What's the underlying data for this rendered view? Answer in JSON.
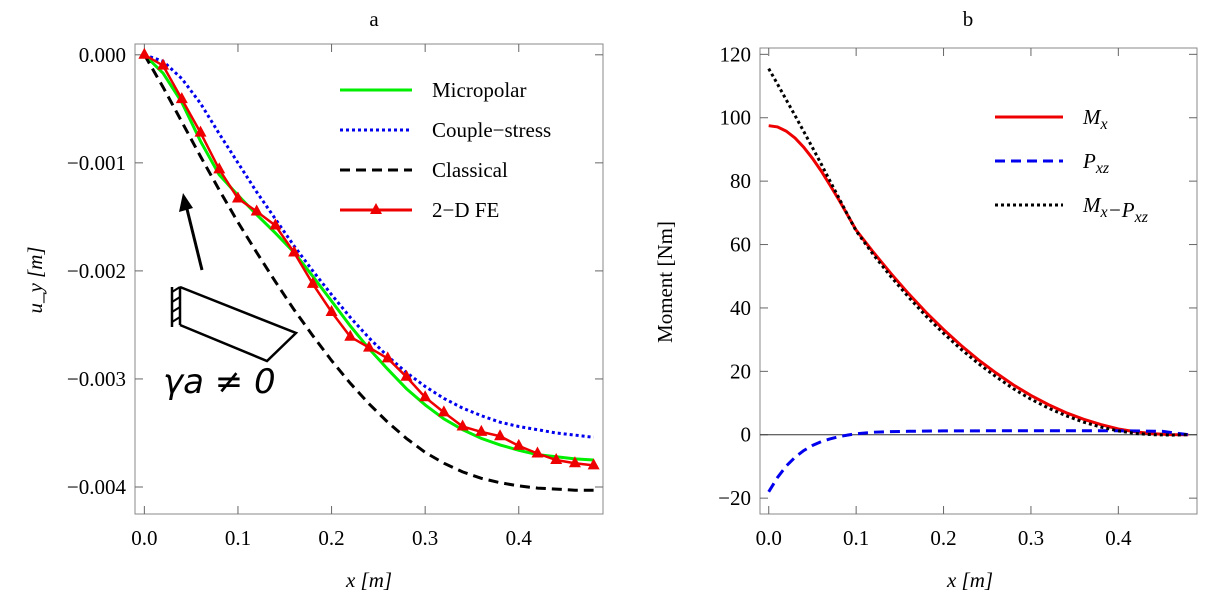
{
  "chart_data": [
    {
      "type": "line",
      "panel_label": "a",
      "xlabel": "x [m]",
      "ylabel": "u_y [m]",
      "xlim": [
        -0.01,
        0.49
      ],
      "ylim": [
        -0.00425,
        0.0001
      ],
      "x_ticks": [
        "0.0",
        "0.1",
        "0.2",
        "0.3",
        "0.4"
      ],
      "y_ticks": [
        "0.000",
        "−0.001",
        "−0.002",
        "−0.003",
        "−0.004"
      ],
      "legend_position": "top-right",
      "series": [
        {
          "name": "Micropolar",
          "color": "#00ee00",
          "style": "solid",
          "x": [
            0,
            0.02,
            0.04,
            0.06,
            0.08,
            0.1,
            0.12,
            0.14,
            0.16,
            0.18,
            0.2,
            0.22,
            0.24,
            0.26,
            0.28,
            0.3,
            0.32,
            0.34,
            0.36,
            0.38,
            0.4,
            0.42,
            0.44,
            0.46,
            0.48
          ],
          "y": [
            0,
            -0.00017,
            -0.00044,
            -0.0008,
            -0.00111,
            -0.0013,
            -0.00148,
            -0.00165,
            -0.00183,
            -0.00205,
            -0.00228,
            -0.00251,
            -0.00272,
            -0.00291,
            -0.00309,
            -0.00324,
            -0.00337,
            -0.00347,
            -0.00355,
            -0.00361,
            -0.00366,
            -0.0037,
            -0.00372,
            -0.00374,
            -0.00375
          ]
        },
        {
          "name": "Couple−stress",
          "color": "#0000ee",
          "style": "dotted",
          "x": [
            0,
            0.02,
            0.04,
            0.06,
            0.08,
            0.1,
            0.12,
            0.14,
            0.16,
            0.18,
            0.2,
            0.22,
            0.24,
            0.26,
            0.28,
            0.3,
            0.32,
            0.34,
            0.36,
            0.38,
            0.4,
            0.42,
            0.44,
            0.46,
            0.48
          ],
          "y": [
            0,
            -6e-05,
            -0.00022,
            -0.00045,
            -0.00073,
            -0.001,
            -0.00127,
            -0.00152,
            -0.00177,
            -0.002,
            -0.00222,
            -0.00243,
            -0.00262,
            -0.00279,
            -0.00294,
            -0.00307,
            -0.00318,
            -0.00327,
            -0.00334,
            -0.0034,
            -0.00344,
            -0.00347,
            -0.0035,
            -0.00352,
            -0.00354
          ]
        },
        {
          "name": "Classical",
          "color": "#000000",
          "style": "dashed",
          "x": [
            0,
            0.02,
            0.04,
            0.06,
            0.08,
            0.1,
            0.12,
            0.14,
            0.16,
            0.18,
            0.2,
            0.22,
            0.24,
            0.26,
            0.28,
            0.3,
            0.32,
            0.34,
            0.36,
            0.38,
            0.4,
            0.42,
            0.44,
            0.46,
            0.48
          ],
          "y": [
            0,
            -0.0003,
            -0.00062,
            -0.00094,
            -0.00125,
            -0.00155,
            -0.00183,
            -0.0021,
            -0.00236,
            -0.0026,
            -0.00283,
            -0.00304,
            -0.00323,
            -0.0034,
            -0.00355,
            -0.00368,
            -0.00378,
            -0.00386,
            -0.00392,
            -0.00396,
            -0.00399,
            -0.00401,
            -0.00402,
            -0.00403,
            -0.00403
          ]
        },
        {
          "name": "2−D FE",
          "color": "#ee0000",
          "style": "solid-markers",
          "marker": "triangle",
          "x": [
            0,
            0.02,
            0.04,
            0.06,
            0.08,
            0.1,
            0.12,
            0.14,
            0.16,
            0.18,
            0.2,
            0.22,
            0.24,
            0.26,
            0.28,
            0.3,
            0.32,
            0.34,
            0.36,
            0.38,
            0.4,
            0.42,
            0.44,
            0.46,
            0.48
          ],
          "y": [
            0,
            -0.0001,
            -0.00041,
            -0.00072,
            -0.00106,
            -0.00133,
            -0.00145,
            -0.00158,
            -0.00183,
            -0.00212,
            -0.00238,
            -0.00261,
            -0.00271,
            -0.00281,
            -0.00298,
            -0.00317,
            -0.00331,
            -0.00344,
            -0.00349,
            -0.00353,
            -0.00362,
            -0.00369,
            -0.00375,
            -0.00378,
            -0.0038
          ]
        }
      ],
      "inset": {
        "label": "γa ≠ 0"
      }
    },
    {
      "type": "line",
      "panel_label": "b",
      "xlabel": "x [m]",
      "ylabel": "Moment  [Nm]",
      "xlim": [
        -0.01,
        0.49
      ],
      "ylim": [
        -25,
        122
      ],
      "x_ticks": [
        "0.0",
        "0.1",
        "0.2",
        "0.3",
        "0.4"
      ],
      "y_ticks": [
        "−20",
        "0",
        "20",
        "40",
        "60",
        "80",
        "100",
        "120"
      ],
      "legend_position": "top-right",
      "series": [
        {
          "name": "M_x",
          "color": "#ee0000",
          "style": "solid",
          "x": [
            0,
            0.01,
            0.02,
            0.03,
            0.04,
            0.05,
            0.06,
            0.07,
            0.08,
            0.09,
            0.1,
            0.12,
            0.14,
            0.16,
            0.18,
            0.2,
            0.22,
            0.24,
            0.26,
            0.28,
            0.3,
            0.32,
            0.34,
            0.36,
            0.38,
            0.4,
            0.42,
            0.44,
            0.46,
            0.48
          ],
          "y": [
            97.5,
            97.1,
            95.8,
            93.6,
            90.7,
            87.2,
            83.2,
            78.8,
            74.2,
            69.4,
            64.6,
            57.5,
            50.8,
            44.5,
            38.6,
            33.2,
            28.2,
            23.6,
            19.5,
            15.7,
            12.4,
            9.5,
            7,
            4.9,
            3.2,
            1.8,
            0.9,
            0.3,
            0.05,
            0
          ]
        },
        {
          "name": "P_xz",
          "color": "#0000ee",
          "style": "dashed",
          "x": [
            0,
            0.01,
            0.02,
            0.03,
            0.04,
            0.05,
            0.06,
            0.07,
            0.08,
            0.09,
            0.1,
            0.12,
            0.14,
            0.16,
            0.2,
            0.25,
            0.3,
            0.35,
            0.4,
            0.45,
            0.48
          ],
          "y": [
            -18,
            -13.5,
            -9.9,
            -7.1,
            -5,
            -3.4,
            -2.2,
            -1.3,
            -0.6,
            -0.1,
            0.3,
            0.8,
            1,
            1.1,
            1.2,
            1.25,
            1.25,
            1.25,
            1.25,
            1.1,
            0
          ]
        },
        {
          "name": "M_x−P_xz",
          "color": "#000000",
          "style": "dotted",
          "x": [
            0,
            0.01,
            0.02,
            0.03,
            0.04,
            0.05,
            0.06,
            0.07,
            0.08,
            0.09,
            0.1,
            0.12,
            0.14,
            0.16,
            0.18,
            0.2,
            0.22,
            0.24,
            0.26,
            0.28,
            0.3,
            0.32,
            0.34,
            0.36,
            0.38,
            0.4,
            0.42,
            0.44,
            0.46,
            0.48
          ],
          "y": [
            115.5,
            110.6,
            105.7,
            100.7,
            95.7,
            90.6,
            85.4,
            80.1,
            74.8,
            69.5,
            64.3,
            56.7,
            49.8,
            43.4,
            37.4,
            32,
            27,
            22.4,
            18.3,
            14.5,
            11.2,
            8.4,
            6,
            4,
            2.4,
            1.2,
            0.4,
            0,
            -0.1,
            0
          ]
        }
      ]
    }
  ]
}
